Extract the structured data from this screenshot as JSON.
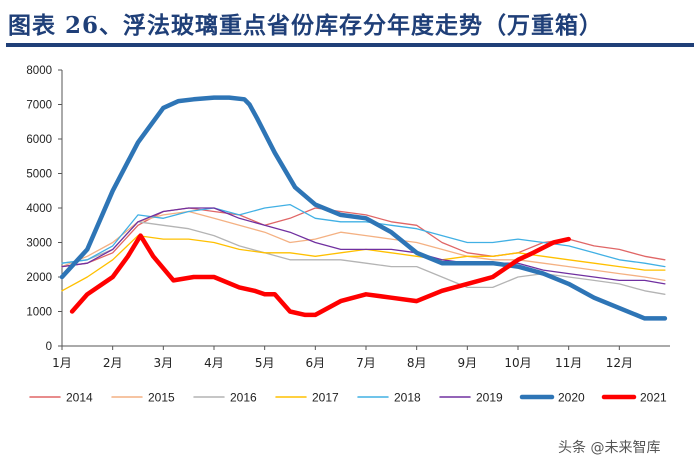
{
  "header": {
    "title": "图表 26、浮法玻璃重点省份库存分年度走势（万重箱）"
  },
  "footer": {
    "watermark": "头条 @未来智库"
  },
  "chart_data": {
    "type": "line",
    "title": "浮法玻璃重点省份库存分年度走势（万重箱）",
    "xlabel": "",
    "ylabel": "",
    "ylim": [
      0,
      8000
    ],
    "yticks": [
      0,
      1000,
      2000,
      3000,
      4000,
      5000,
      6000,
      7000,
      8000
    ],
    "xlim": [
      1,
      13
    ],
    "xticks": [
      1,
      2,
      3,
      4,
      5,
      6,
      7,
      8,
      9,
      10,
      11,
      12
    ],
    "xtick_labels": [
      "1月",
      "2月",
      "3月",
      "4月",
      "5月",
      "6月",
      "7月",
      "8月",
      "9月",
      "10月",
      "11月",
      "12月"
    ],
    "grid": false,
    "legend_position": "bottom",
    "series": [
      {
        "name": "2014",
        "color": "#e06666",
        "width": 1.3,
        "x": [
          1,
          1.5,
          2,
          2.5,
          3,
          3.5,
          4,
          4.5,
          5,
          5.5,
          6,
          6.5,
          7,
          7.5,
          8,
          8.5,
          9,
          9.5,
          10,
          10.5,
          11,
          11.5,
          12,
          12.5,
          12.9
        ],
        "y": [
          2300,
          2400,
          2700,
          3500,
          3900,
          4000,
          3900,
          3800,
          3500,
          3700,
          4000,
          3900,
          3800,
          3600,
          3500,
          3000,
          2700,
          2600,
          2700,
          3000,
          3100,
          2900,
          2800,
          2600,
          2500
        ]
      },
      {
        "name": "2015",
        "color": "#f4b183",
        "width": 1.3,
        "x": [
          1,
          1.5,
          2,
          2.5,
          3,
          3.5,
          4,
          4.5,
          5,
          5.5,
          6,
          6.5,
          7,
          7.5,
          8,
          8.5,
          9,
          9.5,
          10,
          10.5,
          11,
          11.5,
          12,
          12.5,
          12.9
        ],
        "y": [
          2300,
          2600,
          3000,
          3600,
          3800,
          3900,
          3700,
          3500,
          3300,
          3000,
          3100,
          3300,
          3200,
          3100,
          3000,
          2800,
          2600,
          2500,
          2500,
          2400,
          2300,
          2200,
          2100,
          2000,
          1900
        ]
      },
      {
        "name": "2016",
        "color": "#b4b4b4",
        "width": 1.3,
        "x": [
          1,
          1.5,
          2,
          2.5,
          3,
          3.5,
          4,
          4.5,
          5,
          5.5,
          6,
          6.5,
          7,
          7.5,
          8,
          8.5,
          9,
          9.5,
          10,
          10.5,
          11,
          11.5,
          12,
          12.5,
          12.9
        ],
        "y": [
          2400,
          2500,
          2800,
          3600,
          3500,
          3400,
          3200,
          2900,
          2700,
          2500,
          2500,
          2500,
          2400,
          2300,
          2300,
          2000,
          1700,
          1700,
          2000,
          2100,
          2000,
          1900,
          1800,
          1600,
          1500
        ]
      },
      {
        "name": "2017",
        "color": "#ffc000",
        "width": 1.3,
        "x": [
          1,
          1.5,
          2,
          2.5,
          3,
          3.5,
          4,
          4.5,
          5,
          5.5,
          6,
          6.5,
          7,
          7.5,
          8,
          8.5,
          9,
          9.5,
          10,
          10.5,
          11,
          11.5,
          12,
          12.5,
          12.9
        ],
        "y": [
          1600,
          2000,
          2500,
          3200,
          3100,
          3100,
          3000,
          2800,
          2700,
          2700,
          2600,
          2700,
          2800,
          2700,
          2600,
          2500,
          2600,
          2600,
          2700,
          2600,
          2500,
          2400,
          2300,
          2200,
          2200
        ]
      },
      {
        "name": "2018",
        "color": "#41b0e4",
        "width": 1.3,
        "x": [
          1,
          1.5,
          2,
          2.5,
          3,
          3.5,
          4,
          4.5,
          5,
          5.5,
          6,
          6.5,
          7,
          7.5,
          8,
          8.5,
          9,
          9.5,
          10,
          10.5,
          11,
          11.5,
          12,
          12.5,
          12.9
        ],
        "y": [
          2400,
          2500,
          2900,
          3800,
          3700,
          3900,
          4000,
          3800,
          4000,
          4100,
          3700,
          3600,
          3600,
          3500,
          3400,
          3200,
          3000,
          3000,
          3100,
          3000,
          2900,
          2700,
          2500,
          2400,
          2300
        ]
      },
      {
        "name": "2019",
        "color": "#7030a0",
        "width": 1.3,
        "x": [
          1,
          1.5,
          2,
          2.5,
          3,
          3.5,
          4,
          4.5,
          5,
          5.5,
          6,
          6.5,
          7,
          7.5,
          8,
          8.5,
          9,
          9.5,
          10,
          10.5,
          11,
          11.5,
          12,
          12.5,
          12.9
        ],
        "y": [
          2300,
          2400,
          2800,
          3600,
          3900,
          4000,
          4000,
          3700,
          3500,
          3300,
          3000,
          2800,
          2800,
          2800,
          2700,
          2500,
          2400,
          2400,
          2400,
          2200,
          2100,
          2000,
          1900,
          1900,
          1800
        ]
      },
      {
        "name": "2020",
        "color": "#2e75b6",
        "width": 4.5,
        "x": [
          1,
          1.5,
          2,
          2.5,
          3,
          3.3,
          3.6,
          4,
          4.3,
          4.6,
          4.7,
          4.85,
          5.2,
          5.6,
          6,
          6.5,
          7,
          7.5,
          8,
          8.5,
          9,
          9.5,
          10,
          10.5,
          11,
          11.5,
          12,
          12.5,
          12.9
        ],
        "y": [
          2000,
          2800,
          4500,
          5900,
          6900,
          7100,
          7150,
          7200,
          7200,
          7150,
          7000,
          6600,
          5600,
          4600,
          4100,
          3800,
          3700,
          3300,
          2700,
          2400,
          2400,
          2400,
          2300,
          2100,
          1800,
          1400,
          1100,
          800,
          800
        ]
      },
      {
        "name": "2021",
        "color": "#ff0000",
        "width": 4.5,
        "x": [
          1.2,
          1.5,
          2,
          2.3,
          2.55,
          2.8,
          3.2,
          3.6,
          4,
          4.5,
          4.8,
          5,
          5.2,
          5.5,
          5.8,
          6,
          6.5,
          7,
          7.5,
          8,
          8.5,
          9,
          9.5,
          10,
          10.3,
          10.7,
          11
        ],
        "y": [
          1000,
          1500,
          2000,
          2600,
          3200,
          2600,
          1900,
          2000,
          2000,
          1700,
          1600,
          1500,
          1500,
          1000,
          900,
          900,
          1300,
          1500,
          1400,
          1300,
          1600,
          1800,
          2000,
          2500,
          2700,
          3000,
          3100
        ]
      }
    ]
  }
}
